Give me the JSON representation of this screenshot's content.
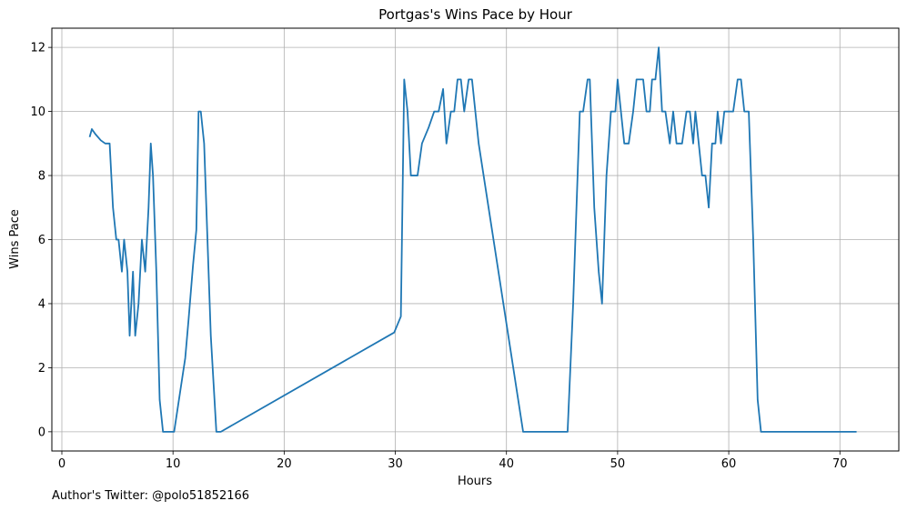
{
  "chart_data": {
    "type": "line",
    "title": "Portgas's Wins Pace by Hour",
    "xlabel": "Hours",
    "ylabel": "Wins Pace",
    "xlim": [
      -0.9,
      75.3
    ],
    "ylim": [
      -0.6,
      12.6
    ],
    "xticks": [
      0,
      10,
      20,
      30,
      40,
      50,
      60,
      70
    ],
    "yticks": [
      0,
      2,
      4,
      6,
      8,
      10,
      12
    ],
    "grid": true,
    "line_color": "#1f77b4",
    "series": [
      {
        "x": [
          2.5,
          2.7,
          3.0,
          3.5,
          3.9,
          4.3,
          4.6,
          4.9,
          5.1,
          5.4,
          5.6,
          5.9,
          6.1,
          6.4,
          6.6,
          6.9,
          7.2,
          7.5,
          7.8,
          8.0,
          8.2,
          8.5,
          8.8,
          9.1,
          9.5,
          10.1,
          11.1,
          11.4,
          11.8,
          12.1,
          12.3,
          12.5,
          12.8,
          13.0,
          13.4,
          13.9,
          14.3,
          29.9,
          30.5,
          30.8,
          31.1,
          31.4,
          31.6,
          32.0,
          32.4,
          33.0,
          33.5,
          33.9,
          34.3,
          34.6,
          35.0,
          35.3,
          35.6,
          35.9,
          36.2,
          36.6,
          36.9,
          37.5,
          41.5,
          45.5,
          46.0,
          46.6,
          46.9,
          47.3,
          47.5,
          47.9,
          48.3,
          48.6,
          49.0,
          49.4,
          49.8,
          50.0,
          50.3,
          50.6,
          51.0,
          51.4,
          51.7,
          52.0,
          52.3,
          52.6,
          52.9,
          53.1,
          53.4,
          53.7,
          54.0,
          54.3,
          54.7,
          55.0,
          55.3,
          55.8,
          56.2,
          56.5,
          56.8,
          57.0,
          57.3,
          57.6,
          57.9,
          58.2,
          58.5,
          58.8,
          59.0,
          59.3,
          59.6,
          59.9,
          60.4,
          60.8,
          61.1,
          61.4,
          61.8,
          62.2,
          62.6,
          62.9,
          63.2,
          64.5,
          71.5
        ],
        "y": [
          9.2,
          9.45,
          9.3,
          9.1,
          9.0,
          9.0,
          7.0,
          6.0,
          6.0,
          5.0,
          6.0,
          5.0,
          3.0,
          5.0,
          3.0,
          4.0,
          6.0,
          5.0,
          7.0,
          9.0,
          8.0,
          5.0,
          1.0,
          0.0,
          0.0,
          0.0,
          2.3,
          3.5,
          5.2,
          6.3,
          10.0,
          10.0,
          9.0,
          7.0,
          3.0,
          0.0,
          0.0,
          3.1,
          3.6,
          11.0,
          10.0,
          8.0,
          8.0,
          8.0,
          9.0,
          9.5,
          10.0,
          10.0,
          10.7,
          9.0,
          10.0,
          10.0,
          11.0,
          11.0,
          10.0,
          11.0,
          11.0,
          9.0,
          0.0,
          0.0,
          4.0,
          10.0,
          10.0,
          11.0,
          11.0,
          7.0,
          5.0,
          4.0,
          8.0,
          10.0,
          10.0,
          11.0,
          10.0,
          9.0,
          9.0,
          10.0,
          11.0,
          11.0,
          11.0,
          10.0,
          10.0,
          11.0,
          11.0,
          12.0,
          10.0,
          10.0,
          9.0,
          10.0,
          9.0,
          9.0,
          10.0,
          10.0,
          9.0,
          10.0,
          9.0,
          8.0,
          8.0,
          7.0,
          9.0,
          9.0,
          10.0,
          9.0,
          10.0,
          10.0,
          10.0,
          11.0,
          11.0,
          10.0,
          10.0,
          6.0,
          1.0,
          0.0,
          0.0,
          0.0,
          0.0
        ]
      }
    ]
  },
  "footer": {
    "credit": "Author's Twitter: @polo51852166"
  }
}
